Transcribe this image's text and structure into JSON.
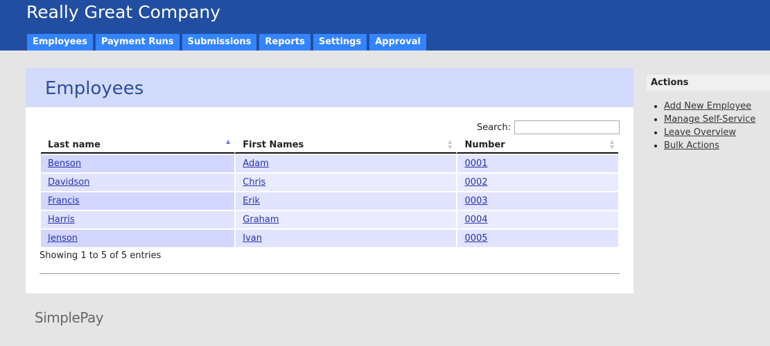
{
  "header": {
    "company": "Really Great Company",
    "tabs": [
      "Employees",
      "Payment Runs",
      "Submissions",
      "Reports",
      "Settings",
      "Approval"
    ]
  },
  "main": {
    "title": "Employees",
    "search_label": "Search:",
    "search_value": "",
    "columns": [
      "Last name",
      "First Names",
      "Number"
    ],
    "sort": {
      "column": "Last name",
      "direction": "ascending"
    },
    "rows": [
      [
        "Benson",
        "Adam",
        "0001"
      ],
      [
        "Davidson",
        "Chris",
        "0002"
      ],
      [
        "Francis",
        "Erik",
        "0003"
      ],
      [
        "Harris",
        "Graham",
        "0004"
      ],
      [
        "Jenson",
        "Ivan",
        "0005"
      ]
    ],
    "info": "Showing 1 to 5 of 5 entries"
  },
  "sidebar": {
    "title": "Actions",
    "items": [
      "Add New Employee",
      "Manage Self-Service",
      "Leave Overview",
      "Bulk Actions"
    ]
  },
  "footer": {
    "logo": "SimplePay"
  },
  "colors": {
    "header": "#214ea1",
    "tab": "#3384ff",
    "title_bar": "#d3dbfc"
  }
}
